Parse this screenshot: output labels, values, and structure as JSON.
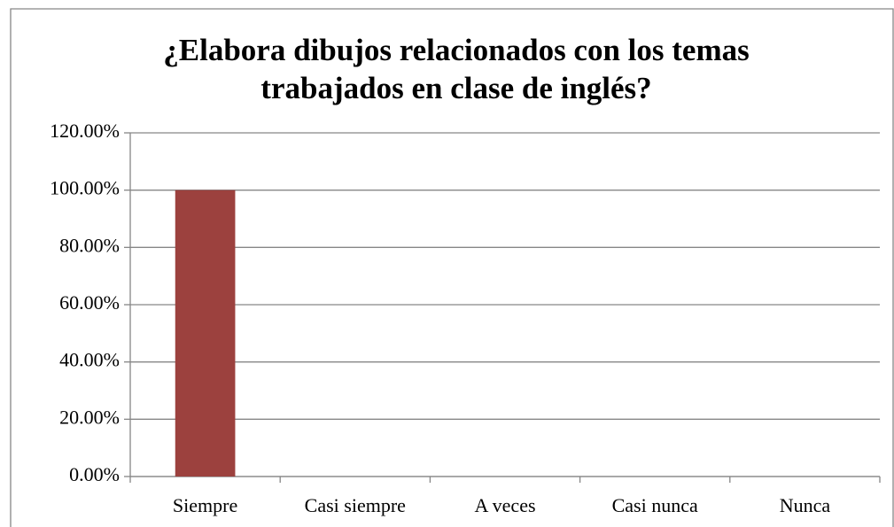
{
  "chart_data": {
    "type": "bar",
    "title": [
      "¿Elabora dibujos relacionados con los temas",
      "trabajados en clase de inglés?"
    ],
    "categories": [
      "Siempre",
      "Casi siempre",
      "A veces",
      "Casi nunca",
      "Nunca"
    ],
    "values": [
      100,
      0,
      0,
      0,
      0
    ],
    "color": "#9c413e",
    "ylim": [
      0,
      120
    ],
    "yticks": [
      {
        "value": 0,
        "label": "0.00%"
      },
      {
        "value": 20,
        "label": "20.00%"
      },
      {
        "value": 40,
        "label": "40.00%"
      },
      {
        "value": 60,
        "label": "60.00%"
      },
      {
        "value": 80,
        "label": "80.00%"
      },
      {
        "value": 100,
        "label": "100.00%"
      },
      {
        "value": 120,
        "label": "120.00%"
      }
    ],
    "grid": true
  }
}
